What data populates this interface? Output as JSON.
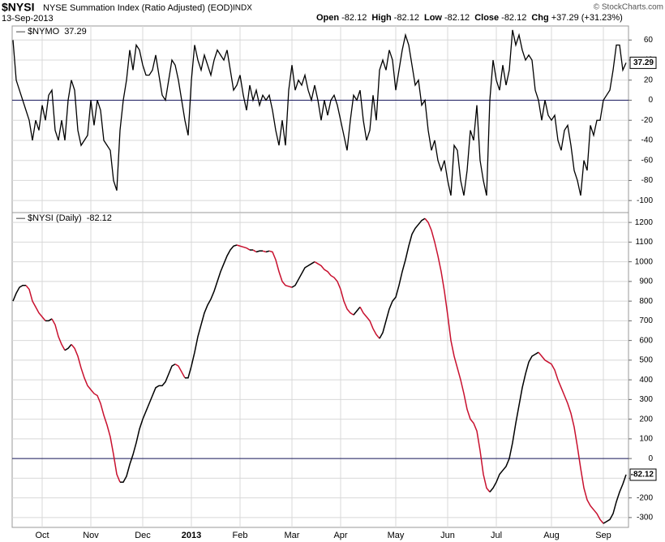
{
  "header": {
    "symbol": "$NYSI",
    "name": "NYSE Summation Index (Ratio Adjusted) (EOD)",
    "exchange": "INDX",
    "date": "13-Sep-2013",
    "quote": [
      {
        "label": "Open",
        "value": "-82.12"
      },
      {
        "label": "High",
        "value": "-82.12"
      },
      {
        "label": "Low",
        "value": "-82.12"
      },
      {
        "label": "Close",
        "value": "-82.12"
      },
      {
        "label": "Chg",
        "value": "+37.29 (+31.23%)"
      }
    ],
    "credit": "© StockCharts.com"
  },
  "chart_data": [
    {
      "type": "line",
      "hline": 0,
      "xlim": [
        0,
        189
      ],
      "ylim": [
        -112,
        74
      ],
      "yticks": [
        60,
        40,
        20,
        0,
        -20,
        -40,
        -60,
        -80,
        -100
      ],
      "grid": true,
      "series": [
        {
          "name": "$NYMO",
          "color": "#000000",
          "values": [
            60,
            20,
            10,
            0,
            -10,
            -20,
            -40,
            -20,
            -30,
            -5,
            -20,
            5,
            10,
            -30,
            -40,
            -20,
            -40,
            0,
            20,
            10,
            -30,
            -45,
            -40,
            -35,
            0,
            -25,
            0,
            -10,
            -40,
            -45,
            -50,
            -80,
            -90,
            -30,
            0,
            20,
            50,
            30,
            55,
            50,
            35,
            25,
            25,
            30,
            45,
            25,
            5,
            0,
            20,
            40,
            35,
            20,
            0,
            -20,
            -35,
            20,
            55,
            40,
            30,
            45,
            35,
            25,
            40,
            50,
            45,
            40,
            50,
            30,
            10,
            15,
            25,
            5,
            -10,
            15,
            0,
            10,
            -5,
            5,
            0,
            5,
            -10,
            -30,
            -45,
            -20,
            -45,
            10,
            35,
            10,
            20,
            15,
            25,
            10,
            0,
            15,
            0,
            -20,
            0,
            -15,
            0,
            5,
            -5,
            -20,
            -35,
            -50,
            -20,
            5,
            0,
            10,
            -20,
            -40,
            -30,
            5,
            -20,
            30,
            40,
            30,
            50,
            40,
            10,
            30,
            50,
            65,
            55,
            35,
            15,
            20,
            -5,
            0,
            -30,
            -50,
            -40,
            -60,
            -70,
            -60,
            -80,
            -95,
            -45,
            -50,
            -80,
            -95,
            -70,
            -30,
            -40,
            -5,
            -60,
            -80,
            -95,
            0,
            40,
            20,
            10,
            35,
            15,
            30,
            70,
            55,
            65,
            50,
            40,
            45,
            40,
            10,
            0,
            -20,
            0,
            -15,
            -20,
            -15,
            -40,
            -50,
            -30,
            -25,
            -45,
            -70,
            -80,
            -95,
            -60,
            -70,
            -25,
            -35,
            -20,
            -20,
            0,
            5,
            10,
            30,
            55,
            55,
            30,
            37.29
          ]
        }
      ]
    },
    {
      "type": "line",
      "hline": 0,
      "xlim": [
        0,
        189
      ],
      "ylim": [
        -350,
        1250
      ],
      "yticks": [
        1200,
        1100,
        1000,
        900,
        800,
        700,
        600,
        500,
        400,
        300,
        200,
        100,
        0,
        -100,
        -200,
        -300
      ],
      "grid": true,
      "xticks": [
        {
          "value": 9,
          "label": "Oct"
        },
        {
          "value": 24,
          "label": "Nov"
        },
        {
          "value": 40,
          "label": "Dec"
        },
        {
          "value": 55,
          "label": "2013"
        },
        {
          "value": 70,
          "label": "Feb"
        },
        {
          "value": 86,
          "label": "Mar"
        },
        {
          "value": 101,
          "label": "Apr"
        },
        {
          "value": 118,
          "label": "May"
        },
        {
          "value": 134,
          "label": "Jun"
        },
        {
          "value": 149,
          "label": "Jul"
        },
        {
          "value": 166,
          "label": "Aug"
        },
        {
          "value": 182,
          "label": "Sep"
        }
      ],
      "series": [
        {
          "name": "$NYSI (Daily)",
          "up_color": "#000000",
          "down_color": "#c8102e",
          "values": [
            800,
            840,
            870,
            880,
            880,
            860,
            800,
            770,
            740,
            720,
            700,
            700,
            710,
            680,
            620,
            580,
            550,
            560,
            580,
            560,
            520,
            460,
            410,
            370,
            350,
            330,
            320,
            280,
            220,
            170,
            110,
            20,
            -80,
            -120,
            -120,
            -90,
            -30,
            20,
            80,
            150,
            200,
            240,
            280,
            320,
            360,
            370,
            370,
            390,
            430,
            470,
            480,
            470,
            440,
            410,
            410,
            470,
            540,
            620,
            680,
            740,
            780,
            810,
            850,
            900,
            950,
            990,
            1030,
            1060,
            1080,
            1085,
            1080,
            1075,
            1070,
            1060,
            1060,
            1050,
            1055,
            1055,
            1050,
            1055,
            1050,
            1010,
            950,
            900,
            880,
            875,
            870,
            880,
            910,
            940,
            970,
            980,
            990,
            1000,
            990,
            980,
            960,
            950,
            930,
            920,
            900,
            860,
            800,
            760,
            740,
            730,
            750,
            770,
            740,
            720,
            700,
            660,
            630,
            610,
            640,
            700,
            760,
            800,
            820,
            880,
            950,
            1010,
            1080,
            1140,
            1170,
            1190,
            1210,
            1220,
            1200,
            1160,
            1100,
            1030,
            950,
            850,
            730,
            600,
            520,
            460,
            400,
            330,
            250,
            200,
            180,
            140,
            40,
            -80,
            -150,
            -170,
            -150,
            -120,
            -80,
            -60,
            -40,
            0,
            80,
            180,
            270,
            360,
            430,
            490,
            520,
            530,
            540,
            520,
            500,
            490,
            480,
            450,
            400,
            360,
            320,
            280,
            230,
            160,
            60,
            -50,
            -150,
            -210,
            -240,
            -260,
            -280,
            -310,
            -330,
            -320,
            -310,
            -280,
            -220,
            -170,
            -130,
            -82.12
          ]
        }
      ]
    }
  ]
}
